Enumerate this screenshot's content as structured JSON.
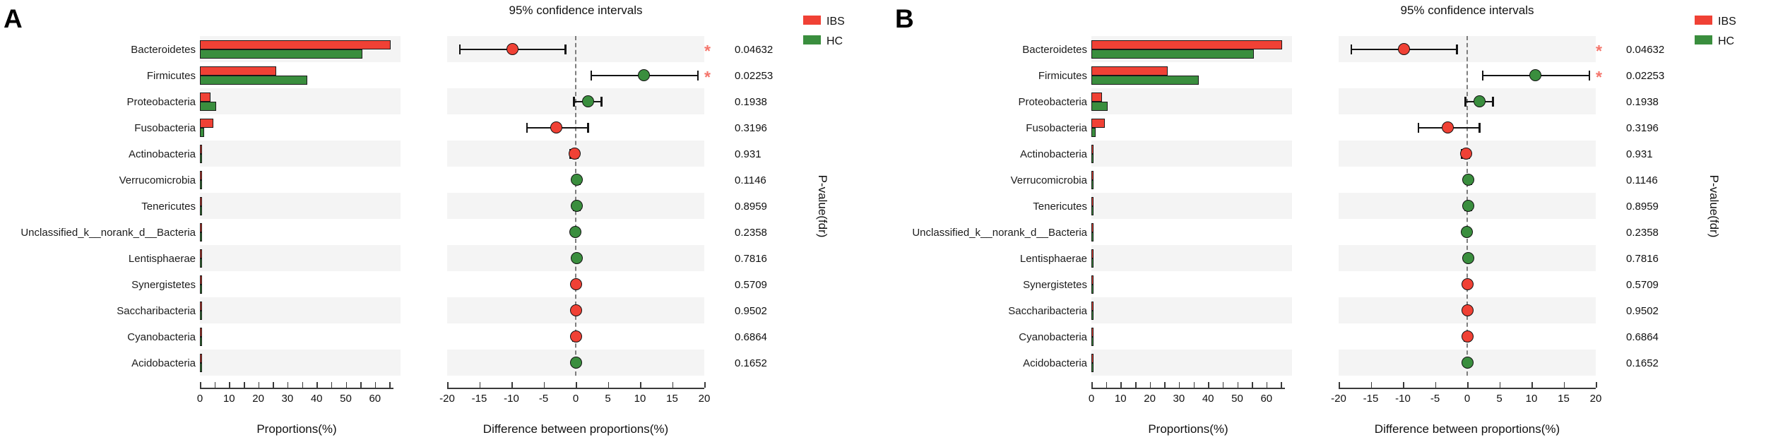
{
  "figure": {
    "panels": [
      {
        "letter": "A"
      },
      {
        "letter": "B"
      }
    ]
  },
  "panel_content": {
    "ci_title": "95% confidence intervals",
    "bar_axis": {
      "label": "Proportions(%)",
      "major_ticks": [
        0,
        10,
        20,
        30,
        40,
        50,
        60
      ],
      "minor_step": 5,
      "max": 65
    },
    "diff_axis": {
      "label": "Difference between proportions(%)",
      "ticks": [
        -20,
        -15,
        -10,
        -5,
        0,
        5,
        10,
        15,
        20
      ]
    },
    "pvalue_label": "P-value(fdr)",
    "sig_marker": "*",
    "legend": [
      {
        "label": "IBS",
        "color": "#f04135"
      },
      {
        "label": "HC",
        "color": "#3a8e3e"
      }
    ]
  },
  "chart_data": {
    "type": "bar",
    "subtype": "STAMP-style extended error bar plot; identical content duplicated in panels A and B",
    "title": "95% confidence intervals",
    "categories": [
      "Bacteroidetes",
      "Firmicutes",
      "Proteobacteria",
      "Fusobacteria",
      "Actinobacteria",
      "Verrucomicrobia",
      "Tenericutes",
      "Unclassified_k__norank_d__Bacteria",
      "Lentisphaerae",
      "Synergistetes",
      "Saccharibacteria",
      "Cyanobacteria",
      "Acidobacteria"
    ],
    "proportions_pct": {
      "xlabel": "Proportions(%)",
      "xlim": [
        0,
        65
      ],
      "series": [
        {
          "name": "IBS",
          "color": "#f04135",
          "values": [
            65.4,
            26.2,
            3.7,
            4.6,
            0.4,
            0.25,
            0.2,
            0.15,
            0.15,
            0.1,
            0.1,
            0.1,
            0.05
          ]
        },
        {
          "name": "HC",
          "color": "#3a8e3e",
          "values": [
            55.7,
            36.8,
            5.6,
            1.5,
            0.35,
            0.3,
            0.25,
            0.1,
            0.2,
            0.1,
            0.1,
            0.05,
            0.08
          ]
        }
      ]
    },
    "difference_pct": {
      "xlabel": "Difference between proportions(%)",
      "xlim": [
        -20,
        20
      ],
      "means": [
        -9.8,
        10.6,
        1.9,
        -3.0,
        -0.2,
        0.2,
        0.2,
        -0.1,
        0.2,
        0.0,
        0.0,
        0.0,
        0.05
      ],
      "ci_low": [
        -18.0,
        2.4,
        -0.3,
        -7.6,
        -0.8,
        -0.2,
        -0.3,
        -0.4,
        -0.1,
        -0.3,
        -0.3,
        -0.4,
        -0.2
      ],
      "ci_high": [
        -1.6,
        19.0,
        4.0,
        1.9,
        0.3,
        0.6,
        0.6,
        0.2,
        0.5,
        0.3,
        0.3,
        0.4,
        0.3
      ],
      "dot_group": [
        "IBS",
        "HC",
        "HC",
        "IBS",
        "IBS",
        "HC",
        "HC",
        "HC",
        "HC",
        "IBS",
        "IBS",
        "IBS",
        "HC"
      ]
    },
    "p_values": [
      "0.04632",
      "0.02253",
      "0.1938",
      "0.3196",
      "0.931",
      "0.1146",
      "0.8959",
      "0.2358",
      "0.7816",
      "0.5709",
      "0.9502",
      "0.6864",
      "0.1652"
    ],
    "significant": [
      true,
      true,
      false,
      false,
      false,
      false,
      false,
      false,
      false,
      false,
      false,
      false,
      false
    ],
    "ylabel_right": "P-value(fdr)"
  }
}
